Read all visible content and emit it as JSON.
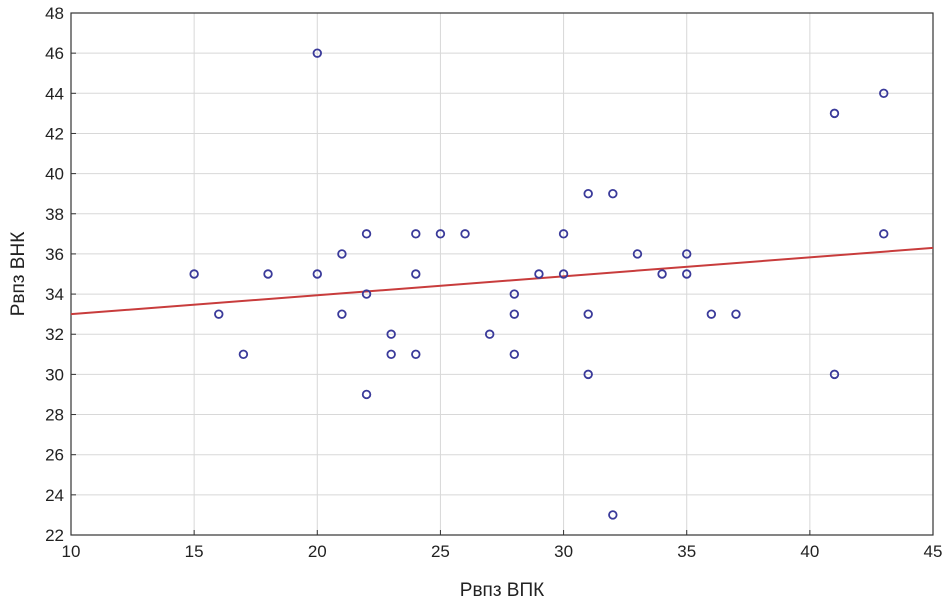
{
  "chart_data": {
    "type": "scatter",
    "title": "",
    "xlabel": "Рвпз ВПК",
    "ylabel": "Рвпз ВНК",
    "xlim": [
      10,
      45
    ],
    "ylim": [
      22,
      48
    ],
    "xticks": [
      10,
      15,
      20,
      25,
      30,
      35,
      40,
      45
    ],
    "yticks": [
      22,
      24,
      26,
      28,
      30,
      32,
      34,
      36,
      38,
      40,
      42,
      44,
      46,
      48
    ],
    "grid": true,
    "points": [
      {
        "x": 15,
        "y": 35
      },
      {
        "x": 16,
        "y": 33
      },
      {
        "x": 17,
        "y": 31
      },
      {
        "x": 18,
        "y": 35
      },
      {
        "x": 20,
        "y": 46
      },
      {
        "x": 20,
        "y": 35
      },
      {
        "x": 21,
        "y": 36
      },
      {
        "x": 21,
        "y": 33
      },
      {
        "x": 22,
        "y": 37
      },
      {
        "x": 22,
        "y": 34
      },
      {
        "x": 22,
        "y": 29
      },
      {
        "x": 23,
        "y": 32
      },
      {
        "x": 23,
        "y": 31
      },
      {
        "x": 24,
        "y": 37
      },
      {
        "x": 24,
        "y": 35
      },
      {
        "x": 24,
        "y": 31
      },
      {
        "x": 25,
        "y": 37
      },
      {
        "x": 26,
        "y": 37
      },
      {
        "x": 27,
        "y": 32
      },
      {
        "x": 28,
        "y": 34
      },
      {
        "x": 28,
        "y": 33
      },
      {
        "x": 28,
        "y": 31
      },
      {
        "x": 29,
        "y": 35
      },
      {
        "x": 30,
        "y": 37
      },
      {
        "x": 30,
        "y": 35
      },
      {
        "x": 31,
        "y": 39
      },
      {
        "x": 31,
        "y": 33
      },
      {
        "x": 31,
        "y": 30
      },
      {
        "x": 32,
        "y": 39
      },
      {
        "x": 32,
        "y": 23
      },
      {
        "x": 33,
        "y": 36
      },
      {
        "x": 34,
        "y": 35
      },
      {
        "x": 35,
        "y": 36
      },
      {
        "x": 35,
        "y": 35
      },
      {
        "x": 36,
        "y": 33
      },
      {
        "x": 37,
        "y": 33
      },
      {
        "x": 41,
        "y": 43
      },
      {
        "x": 41,
        "y": 30
      },
      {
        "x": 43,
        "y": 44
      },
      {
        "x": 43,
        "y": 37
      }
    ],
    "fit_line": {
      "x": [
        10,
        45
      ],
      "y": [
        33.0,
        36.3
      ]
    },
    "colors": {
      "points": "#3a3a9a",
      "fit_line": "#c83c3c",
      "grid": "#d8d8d8",
      "axis": "#333333"
    }
  }
}
